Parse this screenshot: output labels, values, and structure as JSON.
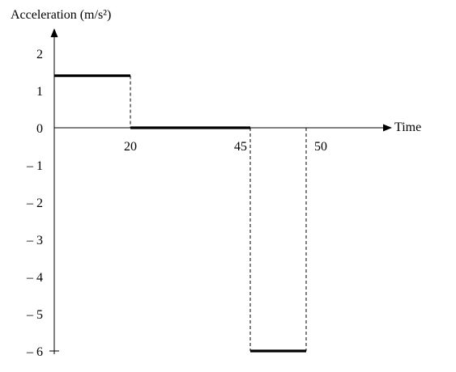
{
  "chart_data": {
    "type": "line",
    "title": "",
    "ylabel": "Acceleration (m/s²)",
    "xlabel": "Time",
    "ylim": [
      -6,
      2
    ],
    "y_ticks": [
      {
        "value": 2,
        "label": "2"
      },
      {
        "value": 1,
        "label": "1"
      },
      {
        "value": 0,
        "label": "0"
      },
      {
        "value": -1,
        "label": "– 1"
      },
      {
        "value": -2,
        "label": "– 2"
      },
      {
        "value": -3,
        "label": "– 3"
      },
      {
        "value": -4,
        "label": "– 4"
      },
      {
        "value": -5,
        "label": "– 5"
      },
      {
        "value": -6,
        "label": "– 6"
      }
    ],
    "x_ticks": [
      {
        "value": 20,
        "label": "20"
      },
      {
        "value": 45,
        "label": "45"
      },
      {
        "value": 50,
        "label": "50"
      }
    ],
    "segments": [
      {
        "x0": 0,
        "x1": 20,
        "y": 1.4
      },
      {
        "x0": 20,
        "x1": 45,
        "y": 0
      },
      {
        "x0": 45,
        "x1": 50,
        "y": -6
      }
    ],
    "dashed_transitions": [
      {
        "x": 20,
        "y_from": 1.4,
        "y_to": 0
      },
      {
        "x": 45,
        "y_from": 0,
        "y_to": -6
      },
      {
        "x": 50,
        "y_from": 0,
        "y_to": -6
      }
    ],
    "grid": false,
    "legend": "none"
  }
}
